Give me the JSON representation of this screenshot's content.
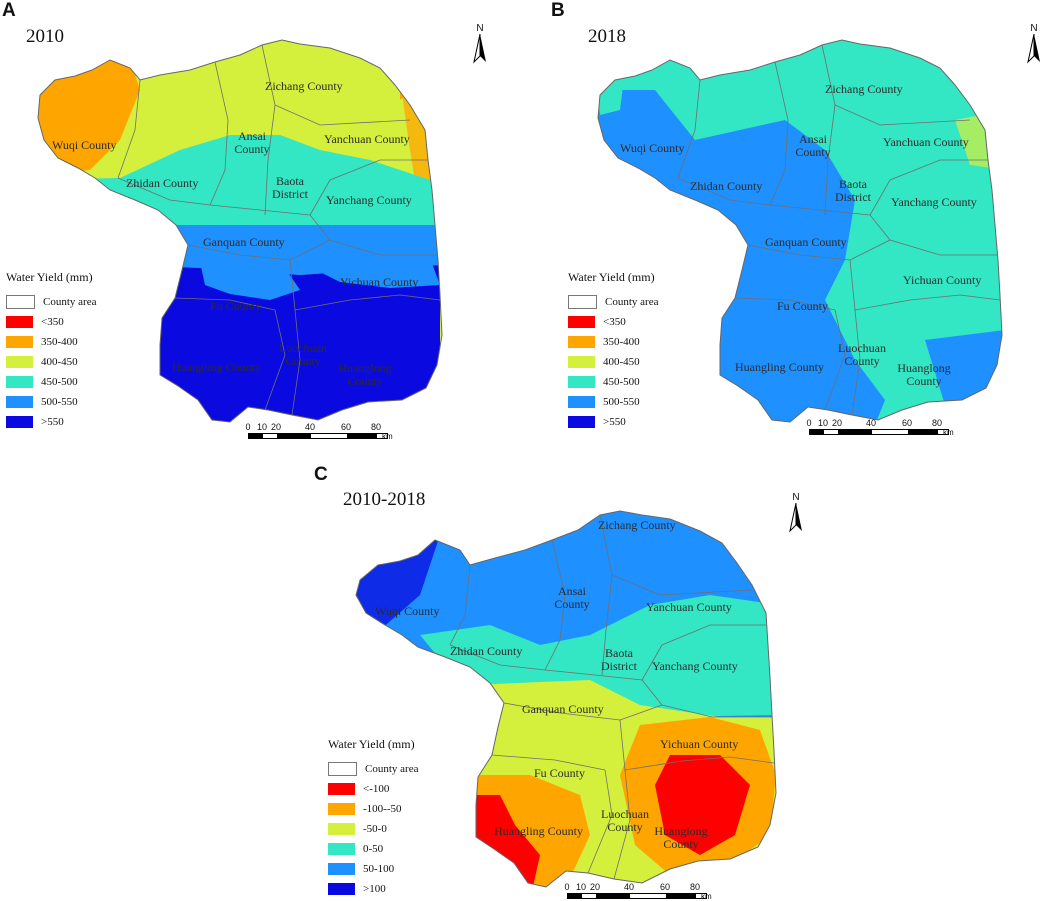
{
  "panels": {
    "a": {
      "letter": "A",
      "year": "2010",
      "legend": {
        "title": "Water Yield (mm)",
        "county_area": "County area",
        "classes": [
          {
            "label": "<350",
            "color": "#ff0000"
          },
          {
            "label": "350-400",
            "color": "#ffa500"
          },
          {
            "label": "400-450",
            "color": "#d4f03c"
          },
          {
            "label": "450-500",
            "color": "#33e6c4"
          },
          {
            "label": "500-550",
            "color": "#1e90ff"
          },
          {
            "label": ">550",
            "color": "#0a0ae0"
          }
        ]
      },
      "counties": {
        "wuqi": "Wuqi County",
        "zhidan": "Zhidan County",
        "ansai": "Ansai County",
        "zichang": "Zichang County",
        "yanchuan": "Yanchuan County",
        "baota": "Baota District",
        "yanchang": "Yanchang County",
        "ganquan": "Ganquan County",
        "yichuan": "Yichuan County",
        "fu": "Fu County",
        "luochuan": "Luochuan County",
        "huangling": "Huangling County",
        "huanglong": "Huanglong County"
      },
      "north": "N",
      "scale": {
        "ticks": [
          "0",
          "10",
          "20",
          "40",
          "60",
          "80"
        ],
        "unit": "km"
      }
    },
    "b": {
      "letter": "B",
      "year": "2018",
      "legend": {
        "title": "Water Yield (mm)",
        "county_area": "County area",
        "classes": [
          {
            "label": "<350",
            "color": "#ff0000"
          },
          {
            "label": "350-400",
            "color": "#ffa500"
          },
          {
            "label": "400-450",
            "color": "#d4f03c"
          },
          {
            "label": "450-500",
            "color": "#33e6c4"
          },
          {
            "label": "500-550",
            "color": "#1e90ff"
          },
          {
            "label": ">550",
            "color": "#0a0ae0"
          }
        ]
      },
      "counties": {
        "wuqi": "Wuqi County",
        "zhidan": "Zhidan County",
        "ansai": "Ansai County",
        "zichang": "Zichang County",
        "yanchuan": "Yanchuan County",
        "baota": "Baota District",
        "yanchang": "Yanchang County",
        "ganquan": "Ganquan County",
        "yichuan": "Yichuan County",
        "fu": "Fu County",
        "luochuan": "Luochuan County",
        "huangling": "Huangling County",
        "huanglong": "Huanglong County"
      },
      "north": "N",
      "scale": {
        "ticks": [
          "0",
          "10",
          "20",
          "40",
          "60",
          "80"
        ],
        "unit": "km"
      }
    },
    "c": {
      "letter": "C",
      "year": "2010-2018",
      "legend": {
        "title": "Water Yield (mm)",
        "county_area": "County area",
        "classes": [
          {
            "label": "<-100",
            "color": "#ff0000"
          },
          {
            "label": "-100--50",
            "color": "#ffa500"
          },
          {
            "label": "-50-0",
            "color": "#d4f03c"
          },
          {
            "label": "0-50",
            "color": "#33e6c4"
          },
          {
            "label": "50-100",
            "color": "#1e90ff"
          },
          {
            "label": ">100",
            "color": "#0a0ae0"
          }
        ]
      },
      "counties": {
        "wuqi": "Wuqi County",
        "zhidan": "Zhidan County",
        "ansai": "Ansai County",
        "zichang": "Zichang County",
        "yanchuan": "Yanchuan County",
        "baota": "Baota District",
        "yanchang": "Yanchang County",
        "ganquan": "Ganquan County",
        "yichuan": "Yichuan County",
        "fu": "Fu County",
        "luochuan": "Luochuan County",
        "huangling": "Huangling County",
        "huanglong": "Huanglong County"
      },
      "north": "N",
      "scale": {
        "ticks": [
          "0",
          "10",
          "20",
          "40",
          "60",
          "80"
        ],
        "unit": "km"
      }
    }
  }
}
